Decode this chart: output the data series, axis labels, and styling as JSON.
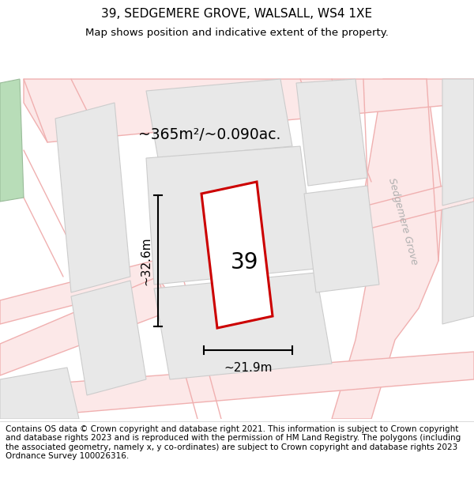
{
  "title_line1": "39, SEDGEMERE GROVE, WALSALL, WS4 1XE",
  "title_line2": "Map shows position and indicative extent of the property.",
  "footer_text": "Contains OS data © Crown copyright and database right 2021. This information is subject to Crown copyright and database rights 2023 and is reproduced with the permission of HM Land Registry. The polygons (including the associated geometry, namely x, y co-ordinates) are subject to Crown copyright and database rights 2023 Ordnance Survey 100026316.",
  "area_label": "~365m²/~0.090ac.",
  "width_label": "~21.9m",
  "height_label": "~32.6m",
  "plot_number": "39",
  "road_label": "Sedgemere Grove",
  "title_fontsize": 11,
  "subtitle_fontsize": 9.5,
  "footer_fontsize": 7.5,
  "map_bg": "#f7f7f7",
  "block_fc": "#e8e8e8",
  "block_ec": "#cccccc",
  "road_color": "#f0b0b0",
  "green_fc": "#b8ddb8",
  "green_ec": "#99bb99",
  "plot_fill": "#ffffff",
  "plot_edge": "#cc0000",
  "road_label_color": "#aaaaaa",
  "dim_color": "#000000"
}
